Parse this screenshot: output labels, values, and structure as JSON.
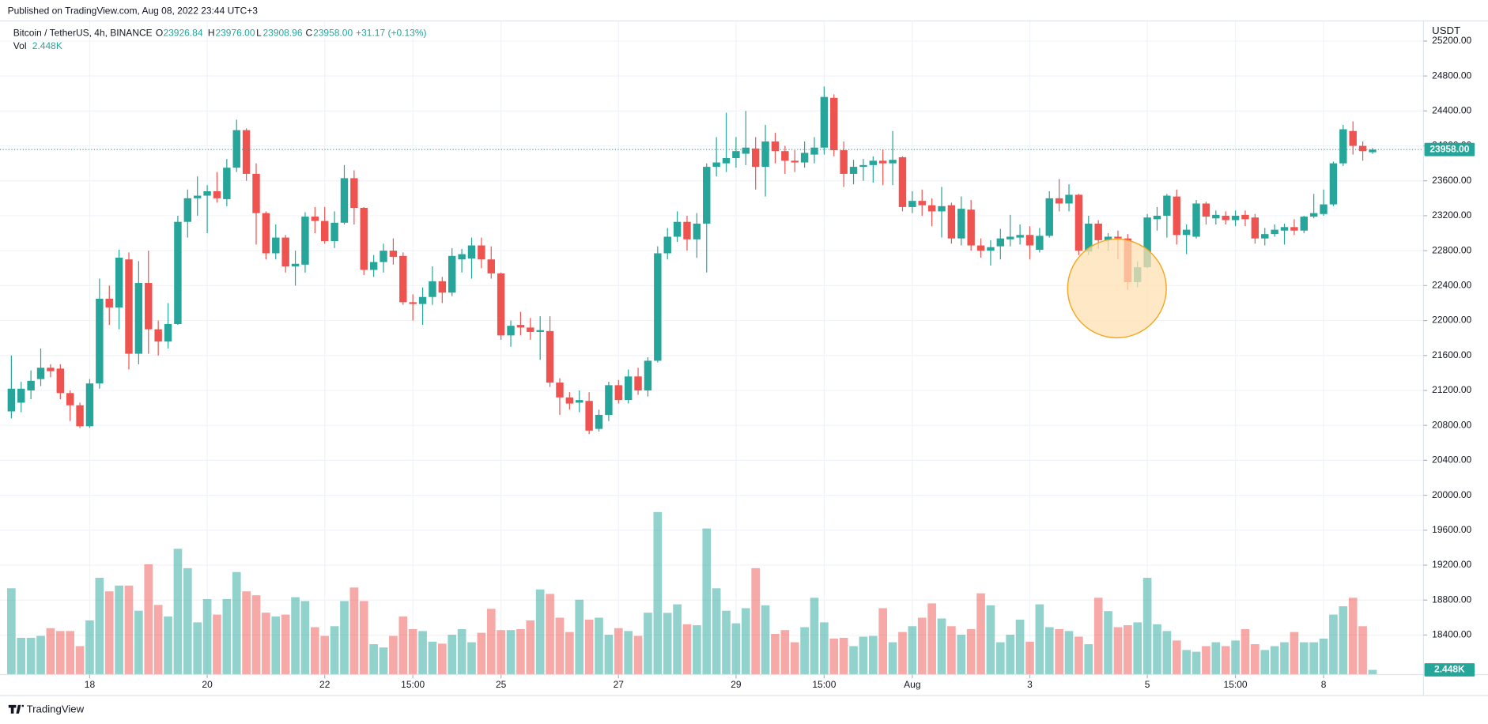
{
  "published": "Published on TradingView.com, Aug 08, 2022 23:44 UTC+3",
  "footer": "TradingView",
  "legend": {
    "symbol": "Bitcoin / TetherUS, 4h, BINANCE",
    "o_key": "O",
    "o": "23926.84",
    "h_key": "H",
    "h": "23976.00",
    "l_key": "L",
    "l": "23908.96",
    "c_key": "C",
    "c": "23958.00",
    "change": "+31.17 (+0.13%)",
    "vol_key": "Vol",
    "vol": "2.448K"
  },
  "chart_data": {
    "type": "candlestick",
    "currency": "USDT",
    "price_label": "23958.00",
    "volume_label": "2.448K",
    "up_color": "#26a69a",
    "down_color": "#ef5350",
    "ylim": [
      17947,
      25430
    ],
    "yticks": [
      {
        "value": 18400,
        "label": "18400.00"
      },
      {
        "value": 18800,
        "label": "18800.00"
      },
      {
        "value": 19200,
        "label": "19200.00"
      },
      {
        "value": 19600,
        "label": "19600.00"
      },
      {
        "value": 20000,
        "label": "20000.00"
      },
      {
        "value": 20400,
        "label": "20400.00"
      },
      {
        "value": 20800,
        "label": "20800.00"
      },
      {
        "value": 21200,
        "label": "21200.00"
      },
      {
        "value": 21600,
        "label": "21600.00"
      },
      {
        "value": 22000,
        "label": "22000.00"
      },
      {
        "value": 22400,
        "label": "22400.00"
      },
      {
        "value": 22800,
        "label": "22800.00"
      },
      {
        "value": 23200,
        "label": "23200.00"
      },
      {
        "value": 23600,
        "label": "23600.00"
      },
      {
        "value": 24000,
        "label": "24000.00"
      },
      {
        "value": 24400,
        "label": "24400.00"
      },
      {
        "value": 24800,
        "label": "24800.00"
      },
      {
        "value": 25200,
        "label": "25200.00"
      }
    ],
    "vlim": [
      0,
      100
    ],
    "xlim": [
      -1.16,
      144.2
    ],
    "xticks": [
      {
        "value": 8,
        "label": "18"
      },
      {
        "value": 20,
        "label": "20"
      },
      {
        "value": 32,
        "label": "22"
      },
      {
        "value": 41,
        "label": "15:00"
      },
      {
        "value": 50,
        "label": "25"
      },
      {
        "value": 62,
        "label": "27"
      },
      {
        "value": 74,
        "label": "29"
      },
      {
        "value": 83,
        "label": "15:00"
      },
      {
        "value": 92,
        "label": "Aug"
      },
      {
        "value": 104,
        "label": "3"
      },
      {
        "value": 116,
        "label": "5"
      },
      {
        "value": 125,
        "label": "15:00"
      },
      {
        "value": 134,
        "label": "8"
      }
    ],
    "grid": true,
    "open": [
      20960,
      21060,
      21200,
      21330,
      21460,
      21450,
      21170,
      21030,
      20790,
      21280,
      22250,
      22150,
      22700,
      21620,
      22430,
      21900,
      21760,
      21960,
      23130,
      23400,
      23430,
      23480,
      23390,
      23750,
      24180,
      23680,
      23230,
      22770,
      22950,
      22620,
      22640,
      23190,
      23140,
      22910,
      23120,
      23630,
      23290,
      22580,
      22670,
      22800,
      22740,
      22210,
      22190,
      22270,
      22450,
      22320,
      22700,
      22710,
      22860,
      22700,
      22540,
      21830,
      21950,
      21920,
      21870,
      21880,
      21290,
      21120,
      21060,
      21080,
      20760,
      20920,
      21260,
      21090,
      21360,
      21200,
      21540,
      22770,
      22960,
      23130,
      22930,
      23110,
      23760,
      23800,
      23860,
      23910,
      23970,
      23760,
      24050,
      23940,
      23830,
      23810,
      23900,
      23980,
      24550,
      23950,
      23680,
      23760,
      23780,
      23830,
      23800,
      23870,
      23300,
      23370,
      23320,
      23250,
      23320,
      22940,
      23270,
      22860,
      22800,
      22850,
      22930,
      22950,
      22980,
      22810,
      22970,
      23400,
      23340,
      23440,
      22790,
      23110,
      22920,
      22960,
      22940,
      22440,
      22610,
      23160,
      23200,
      23420,
      22980,
      22960,
      23340,
      23170,
      23200,
      23150,
      23210,
      23180,
      22940,
      22990,
      23030,
      23070,
      23030,
      23190,
      23220,
      23330,
      23800,
      24170,
      24000,
      23926.84
    ],
    "high": [
      21600,
      21300,
      21430,
      21680,
      21500,
      21500,
      21200,
      21060,
      21330,
      22480,
      22400,
      22810,
      22780,
      22680,
      22800,
      22000,
      22200,
      23200,
      23500,
      23650,
      23550,
      23700,
      23850,
      24300,
      24200,
      23800,
      23250,
      23100,
      22980,
      22800,
      23240,
      23300,
      23300,
      23250,
      23780,
      23720,
      23300,
      22750,
      22880,
      22940,
      22780,
      22300,
      22380,
      22620,
      22500,
      22830,
      22820,
      22950,
      22950,
      22850,
      22550,
      22000,
      22100,
      22030,
      22050,
      22050,
      21340,
      21180,
      21200,
      21180,
      20980,
      21300,
      21320,
      21440,
      21460,
      21580,
      22850,
      23060,
      23250,
      23200,
      23230,
      23800,
      24100,
      24380,
      24100,
      24400,
      24100,
      24240,
      24150,
      24000,
      23950,
      24050,
      24100,
      24680,
      24590,
      24050,
      23840,
      23850,
      23880,
      23960,
      24170,
      23880,
      23480,
      23500,
      23400,
      23530,
      23350,
      23420,
      23380,
      22940,
      22920,
      23050,
      23210,
      23100,
      23080,
      23060,
      23480,
      23620,
      23560,
      23450,
      23200,
      23150,
      23000,
      23030,
      22990,
      22680,
      23220,
      23300,
      23450,
      23500,
      23100,
      23380,
      23360,
      23260,
      23250,
      23260,
      23260,
      23220,
      23060,
      23100,
      23110,
      23160,
      23200,
      23450,
      23500,
      23820,
      24240,
      24280,
      24050,
      23976
    ],
    "low": [
      20880,
      20950,
      21100,
      21250,
      21350,
      21100,
      20850,
      20770,
      20770,
      21220,
      21950,
      21900,
      21440,
      21500,
      21620,
      21600,
      21680,
      21950,
      22950,
      23200,
      23000,
      23350,
      23310,
      23700,
      23600,
      22870,
      22700,
      22700,
      22550,
      22400,
      22550,
      23000,
      22880,
      22830,
      23100,
      23100,
      22520,
      22500,
      22550,
      22640,
      22180,
      22000,
      21950,
      22180,
      22200,
      22280,
      22550,
      22480,
      22600,
      22480,
      21780,
      21700,
      21830,
      21780,
      21550,
      21240,
      20920,
      20980,
      20950,
      20700,
      20730,
      20850,
      21050,
      21050,
      21150,
      21130,
      21520,
      22700,
      22900,
      22800,
      22720,
      22550,
      23650,
      23700,
      23750,
      23780,
      23500,
      23420,
      23800,
      23680,
      23700,
      23750,
      23800,
      23900,
      23880,
      23530,
      23560,
      23600,
      23580,
      23550,
      23550,
      23250,
      23230,
      23200,
      23080,
      22950,
      22880,
      22860,
      22800,
      22720,
      22630,
      22700,
      22850,
      22870,
      22700,
      22780,
      22950,
      23250,
      23250,
      22750,
      22750,
      22820,
      22800,
      22700,
      22350,
      22380,
      22600,
      23030,
      22950,
      22870,
      22760,
      22940,
      23100,
      23100,
      23100,
      23080,
      23080,
      22880,
      22860,
      22960,
      22870,
      22980,
      23000,
      23170,
      23200,
      23310,
      23770,
      23900,
      23830,
      23908.96
    ],
    "close": [
      21220,
      21220,
      21310,
      21460,
      21420,
      21170,
      21030,
      20790,
      21280,
      22250,
      22150,
      22720,
      21620,
      22430,
      21900,
      21760,
      21960,
      23130,
      23400,
      23430,
      23480,
      23400,
      23750,
      24180,
      23680,
      23230,
      22770,
      22950,
      22620,
      22650,
      23190,
      23140,
      22910,
      23120,
      23630,
      23290,
      22580,
      22670,
      22800,
      22730,
      22210,
      22190,
      22270,
      22450,
      22320,
      22740,
      22760,
      22860,
      22700,
      22540,
      21830,
      21940,
      21920,
      21870,
      21890,
      21290,
      21120,
      21050,
      21090,
      20740,
      20920,
      21260,
      21090,
      21360,
      21200,
      21540,
      22770,
      22960,
      23130,
      22930,
      23110,
      23760,
      23810,
      23860,
      23940,
      23980,
      23760,
      24050,
      23940,
      23830,
      23810,
      23920,
      23980,
      24560,
      23950,
      23680,
      23760,
      23780,
      23830,
      23800,
      23840,
      23300,
      23370,
      23320,
      23250,
      23310,
      22940,
      23280,
      22860,
      22800,
      22840,
      22940,
      22960,
      22980,
      22860,
      22970,
      23400,
      23340,
      23440,
      22800,
      23110,
      22920,
      22960,
      22940,
      22440,
      22610,
      23180,
      23200,
      23430,
      22980,
      23040,
      23340,
      23190,
      23210,
      23150,
      23200,
      23160,
      22940,
      22990,
      23040,
      23070,
      23030,
      23190,
      23230,
      23330,
      23800,
      24190,
      24000,
      23940,
      23958
    ],
    "volume": [
      44.6,
      19,
      19,
      20,
      24,
      22.5,
      22.5,
      14.7,
      28,
      50,
      43,
      46,
      46,
      33,
      57,
      36,
      30,
      65,
      55,
      27,
      39,
      31,
      39,
      53,
      43,
      41,
      32,
      30,
      31,
      40,
      38,
      24.5,
      20,
      25,
      38,
      45,
      38,
      15.7,
      14,
      20,
      30,
      23.5,
      22.5,
      17,
      16,
      20.6,
      23.5,
      16.7,
      21.6,
      34,
      23,
      23,
      23.5,
      28,
      44,
      41.7,
      29.4,
      22,
      38.7,
      28.4,
      29.4,
      20.6,
      24,
      22.5,
      20,
      32,
      84,
      31.9,
      36.3,
      26,
      25.5,
      75.5,
      44.6,
      33,
      26.5,
      34.3,
      55,
      35.8,
      21,
      23,
      16.7,
      24.5,
      39.7,
      27,
      18.6,
      19,
      14.7,
      19.6,
      20,
      34.3,
      16.7,
      22,
      25,
      29.4,
      36.8,
      29,
      25,
      20.6,
      23.5,
      42,
      35.8,
      16.7,
      20.6,
      28.4,
      17,
      36.3,
      24.5,
      23.5,
      22.5,
      19.6,
      15.7,
      39.7,
      32.8,
      24.5,
      25.5,
      27,
      50,
      26,
      22.5,
      17.6,
      12.7,
      11.8,
      14.7,
      16.7,
      14.7,
      17.6,
      23.5,
      15.7,
      12.7,
      14.7,
      16.7,
      22,
      16.7,
      16.7,
      18.6,
      31,
      35.3,
      39.7,
      25,
      2.448
    ]
  }
}
